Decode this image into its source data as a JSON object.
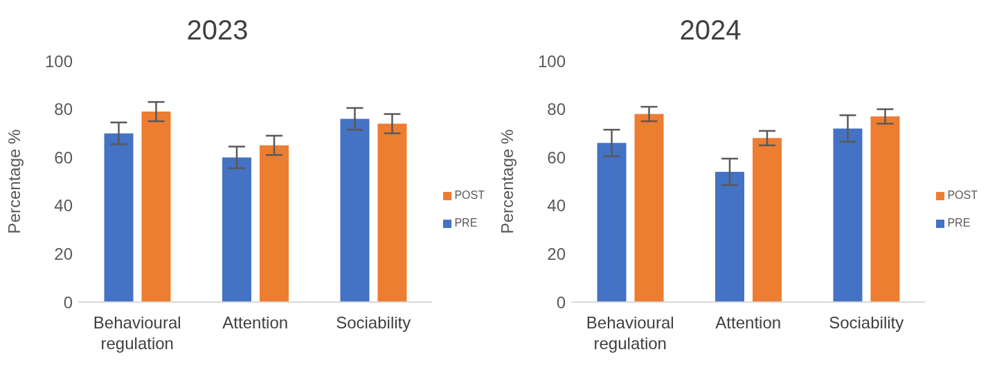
{
  "chart_data": [
    {
      "type": "bar",
      "title": "2023",
      "ylabel": "Percentage %",
      "categories": [
        "Behavioural regulation",
        "Attention",
        "Sociability"
      ],
      "series": [
        {
          "name": "PRE",
          "color": "#4472c4",
          "values": [
            70,
            60,
            76
          ],
          "errors": [
            4.5,
            4.5,
            4.5
          ]
        },
        {
          "name": "POST",
          "color": "#ed7d31",
          "values": [
            79,
            65,
            74
          ],
          "errors": [
            4,
            4,
            4
          ]
        }
      ],
      "ylim": [
        0,
        100
      ],
      "yticks": [
        0,
        20,
        40,
        60,
        80,
        100
      ],
      "legend": "right"
    },
    {
      "type": "bar",
      "title": "2024",
      "ylabel": "Percentage %",
      "categories": [
        "Behavioural regulation",
        "Attention",
        "Sociability"
      ],
      "series": [
        {
          "name": "PRE",
          "color": "#4472c4",
          "values": [
            66,
            54,
            72
          ],
          "errors": [
            5.5,
            5.5,
            5.5
          ]
        },
        {
          "name": "POST",
          "color": "#ed7d31",
          "values": [
            78,
            68,
            77
          ],
          "errors": [
            3,
            3,
            3
          ]
        }
      ],
      "ylim": [
        0,
        100
      ],
      "yticks": [
        0,
        20,
        40,
        60,
        80,
        100
      ],
      "legend": "right"
    }
  ]
}
